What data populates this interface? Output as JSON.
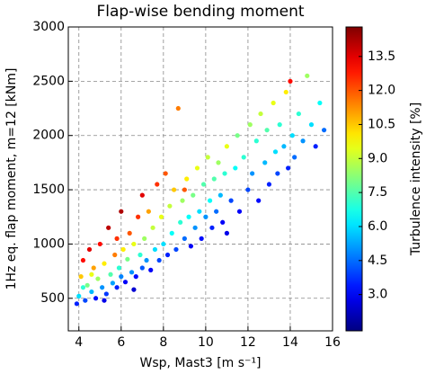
{
  "chart_data": {
    "type": "scatter",
    "title": "Flap-wise bending moment",
    "x_label": "Wsp, Mast3 [m s⁻¹]",
    "y_label": "1Hz eq. flap moment, m=12 [kNm]",
    "colorbar_label": "Turbulence intensity [%]",
    "colormap": "jet",
    "grid": true,
    "xlim": [
      3.5,
      16
    ],
    "xticks": [
      4,
      6,
      8,
      10,
      12,
      14,
      16
    ],
    "ylim": [
      200,
      3000
    ],
    "yticks": [
      500,
      1000,
      1500,
      2000,
      2500,
      3000
    ],
    "clim": [
      1.4,
      14.8
    ],
    "cticks": [
      {
        "value": 3,
        "label": "3.0"
      },
      {
        "value": 4.5,
        "label": "4.5"
      },
      {
        "value": 6,
        "label": "6.0"
      },
      {
        "value": 7.5,
        "label": "7.5"
      },
      {
        "value": 9,
        "label": "9.0"
      },
      {
        "value": 10.5,
        "label": "10.5"
      },
      {
        "value": 12,
        "label": "12.0"
      },
      {
        "value": 13.5,
        "label": "13.5"
      }
    ],
    "x": [
      3.9,
      4.0,
      4.1,
      4.2,
      4.3,
      4.4,
      4.5,
      4.6,
      4.7,
      4.8,
      4.9,
      5.0,
      5.1,
      5.2,
      5.3,
      5.4,
      5.5,
      5.6,
      5.7,
      5.8,
      5.9,
      6.0,
      6.0,
      6.1,
      6.2,
      6.3,
      6.4,
      6.5,
      6.6,
      6.7,
      6.8,
      6.9,
      7.0,
      7.0,
      7.1,
      7.2,
      7.3,
      7.4,
      7.5,
      7.6,
      7.7,
      7.8,
      7.9,
      8.0,
      8.1,
      8.2,
      8.3,
      8.4,
      8.5,
      8.6,
      8.7,
      8.8,
      8.9,
      9.0,
      9.1,
      9.2,
      9.3,
      9.4,
      9.5,
      9.6,
      9.7,
      9.8,
      9.9,
      10.0,
      10.1,
      10.2,
      10.3,
      10.4,
      10.5,
      10.6,
      10.7,
      10.8,
      10.9,
      11.0,
      11.2,
      11.4,
      11.5,
      11.6,
      11.8,
      12.0,
      12.1,
      12.2,
      12.4,
      12.5,
      12.6,
      12.8,
      12.9,
      13.0,
      13.2,
      13.3,
      13.4,
      13.5,
      13.7,
      13.8,
      13.9,
      14.0,
      14.1,
      14.2,
      14.4,
      14.6,
      14.8,
      15.0,
      15.2,
      15.4,
      15.6,
      4.2,
      4.6,
      5.2,
      5.8,
      6.6,
      9.0,
      11.0
    ],
    "values": [
      450,
      520,
      700,
      850,
      480,
      620,
      950,
      560,
      780,
      500,
      680,
      1000,
      600,
      820,
      540,
      1150,
      720,
      640,
      900,
      600,
      780,
      1300,
      700,
      950,
      650,
      860,
      1100,
      740,
      1000,
      700,
      1250,
      900,
      1450,
      780,
      1050,
      850,
      1300,
      760,
      1150,
      950,
      1550,
      850,
      1250,
      1000,
      1650,
      900,
      1350,
      1100,
      1500,
      950,
      2250,
      1200,
      1400,
      1050,
      1600,
      1250,
      980,
      1450,
      1150,
      1700,
      1300,
      1050,
      1550,
      1250,
      1800,
      1400,
      1150,
      1600,
      1300,
      1750,
      1450,
      1200,
      1650,
      1900,
      1400,
      1700,
      2000,
      1300,
      1800,
      1500,
      2100,
      1650,
      1950,
      1400,
      2200,
      1750,
      2050,
      1550,
      2300,
      1850,
      1650,
      2100,
      1900,
      2400,
      1700,
      2500,
      2000,
      1800,
      2200,
      1950,
      2550,
      2100,
      1900,
      2300,
      2050,
      600,
      720,
      480,
      1050,
      580,
      1500,
      1100
    ],
    "color_values": [
      3.5,
      6.0,
      10.5,
      13.0,
      4.0,
      8.0,
      13.5,
      5.5,
      11.0,
      3.2,
      8.5,
      13.0,
      5.0,
      10.0,
      3.8,
      14.0,
      7.5,
      5.2,
      11.5,
      3.5,
      7.0,
      14.2,
      4.8,
      10.0,
      3.0,
      8.0,
      12.0,
      5.0,
      9.5,
      3.2,
      12.5,
      7.0,
      13.5,
      4.2,
      8.5,
      5.0,
      11.0,
      3.0,
      9.0,
      6.0,
      12.5,
      4.0,
      9.5,
      6.0,
      12.0,
      3.5,
      9.0,
      6.5,
      10.5,
      4.0,
      11.5,
      7.0,
      8.5,
      4.5,
      10.0,
      6.5,
      3.0,
      8.0,
      5.0,
      9.5,
      6.0,
      3.2,
      7.5,
      5.0,
      9.0,
      6.5,
      3.5,
      7.5,
      4.5,
      8.5,
      5.5,
      3.0,
      7.0,
      9.5,
      4.0,
      6.5,
      8.0,
      3.0,
      7.0,
      4.0,
      8.5,
      5.0,
      7.0,
      3.2,
      9.0,
      5.5,
      7.5,
      3.5,
      9.5,
      6.0,
      4.0,
      7.0,
      5.5,
      10.0,
      3.5,
      13.0,
      6.0,
      4.5,
      7.0,
      5.0,
      8.5,
      6.0,
      3.5,
      6.5,
      4.5,
      7.0,
      9.5,
      2.8,
      12.5,
      2.5,
      12.0,
      2.8
    ]
  }
}
